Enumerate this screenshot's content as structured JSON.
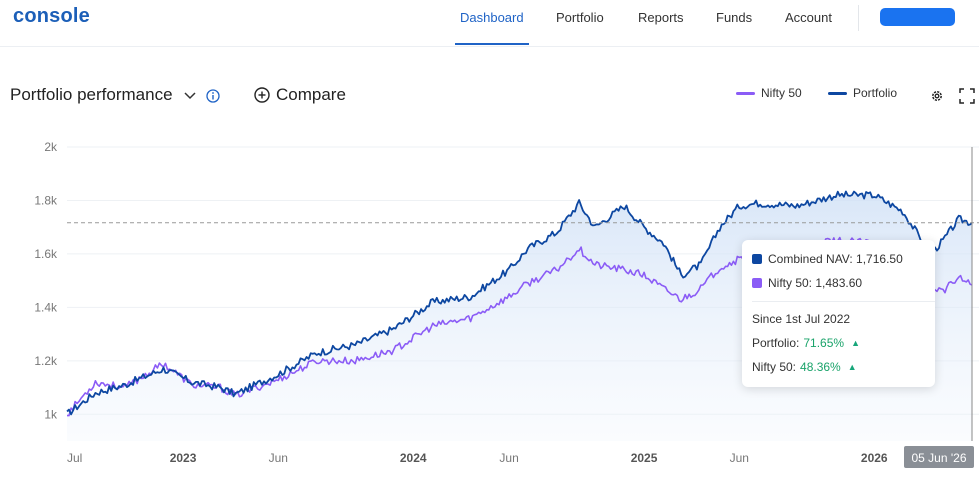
{
  "header": {
    "logo": "console",
    "nav": [
      {
        "label": "Dashboard",
        "active": true
      },
      {
        "label": "Portfolio",
        "active": false
      },
      {
        "label": "Reports",
        "active": false
      },
      {
        "label": "Funds",
        "active": false
      },
      {
        "label": "Account",
        "active": false
      }
    ]
  },
  "toolbar": {
    "title": "Portfolio performance",
    "compare_label": "Compare",
    "legend": [
      {
        "label": "Nifty 50",
        "color": "#8b5cf6"
      },
      {
        "label": "Portfolio",
        "color": "#0d47a1"
      }
    ]
  },
  "tooltip": {
    "combined_label": "Combined NAV: 1,716.50",
    "nifty_label": "Nifty 50: 1,483.60",
    "since": "Since 1st Jul 2022",
    "portfolio_key": "Portfolio:",
    "portfolio_val": "71.65%",
    "nifty_key": "Nifty 50:",
    "nifty_val": "48.36%"
  },
  "chart_data": {
    "type": "line",
    "title": "",
    "xlabel": "",
    "ylabel": "",
    "ylim": [
      900,
      2000
    ],
    "x_range": [
      "2022-07-01",
      "2026-06-05"
    ],
    "y_ticks": [
      {
        "value": 1000,
        "label": "1k"
      },
      {
        "value": 1200,
        "label": "1.2k"
      },
      {
        "value": 1400,
        "label": "1.4k"
      },
      {
        "value": 1600,
        "label": "1.6k"
      },
      {
        "value": 1800,
        "label": "1.8k"
      },
      {
        "value": 2000,
        "label": "2k"
      }
    ],
    "x_ticks": [
      {
        "date": "2022-07-01",
        "label": "Jul"
      },
      {
        "date": "2023-01-01",
        "label": "2023"
      },
      {
        "date": "2023-06-01",
        "label": "Jun"
      },
      {
        "date": "2024-01-01",
        "label": "2024"
      },
      {
        "date": "2024-06-01",
        "label": "Jun"
      },
      {
        "date": "2025-01-01",
        "label": "2025"
      },
      {
        "date": "2025-06-01",
        "label": "Jun"
      },
      {
        "date": "2026-01-01",
        "label": "2026"
      }
    ],
    "crosshair": {
      "date": "2026-06-05",
      "label": "05 Jun '26",
      "value": 1716.5
    },
    "grid": true,
    "legend_position": "top-right",
    "series": [
      {
        "name": "Portfolio",
        "color": "#0d47a1",
        "points": [
          [
            "2022-07-01",
            1000
          ],
          [
            "2022-08-15",
            1080
          ],
          [
            "2022-10-01",
            1110
          ],
          [
            "2022-12-01",
            1170
          ],
          [
            "2023-01-15",
            1120
          ],
          [
            "2023-03-01",
            1100
          ],
          [
            "2023-03-25",
            1075
          ],
          [
            "2023-06-01",
            1150
          ],
          [
            "2023-08-01",
            1230
          ],
          [
            "2023-10-01",
            1260
          ],
          [
            "2023-12-01",
            1320
          ],
          [
            "2024-02-01",
            1420
          ],
          [
            "2024-04-01",
            1440
          ],
          [
            "2024-06-01",
            1540
          ],
          [
            "2024-07-01",
            1620
          ],
          [
            "2024-08-15",
            1680
          ],
          [
            "2024-09-20",
            1790
          ],
          [
            "2024-10-15",
            1700
          ],
          [
            "2024-12-01",
            1780
          ],
          [
            "2025-01-01",
            1700
          ],
          [
            "2025-02-01",
            1640
          ],
          [
            "2025-03-01",
            1520
          ],
          [
            "2025-04-01",
            1560
          ],
          [
            "2025-05-01",
            1700
          ],
          [
            "2025-06-01",
            1780
          ],
          [
            "2025-07-01",
            1790
          ],
          [
            "2025-09-01",
            1780
          ],
          [
            "2025-11-01",
            1820
          ],
          [
            "2026-01-01",
            1820
          ],
          [
            "2026-02-15",
            1760
          ],
          [
            "2026-04-01",
            1600
          ],
          [
            "2026-04-20",
            1650
          ],
          [
            "2026-05-15",
            1730
          ],
          [
            "2026-06-05",
            1716.5
          ]
        ]
      },
      {
        "name": "Nifty 50",
        "color": "#8b5cf6",
        "points": [
          [
            "2022-07-01",
            1000
          ],
          [
            "2022-08-15",
            1120
          ],
          [
            "2022-10-01",
            1100
          ],
          [
            "2022-12-01",
            1190
          ],
          [
            "2023-01-15",
            1110
          ],
          [
            "2023-03-01",
            1100
          ],
          [
            "2023-03-25",
            1070
          ],
          [
            "2023-06-01",
            1130
          ],
          [
            "2023-08-01",
            1200
          ],
          [
            "2023-10-01",
            1200
          ],
          [
            "2023-12-01",
            1240
          ],
          [
            "2024-02-01",
            1330
          ],
          [
            "2024-04-01",
            1360
          ],
          [
            "2024-06-01",
            1440
          ],
          [
            "2024-07-01",
            1490
          ],
          [
            "2024-08-15",
            1540
          ],
          [
            "2024-09-20",
            1620
          ],
          [
            "2024-10-15",
            1560
          ],
          [
            "2024-12-01",
            1540
          ],
          [
            "2025-01-01",
            1520
          ],
          [
            "2025-02-01",
            1470
          ],
          [
            "2025-03-01",
            1430
          ],
          [
            "2025-04-01",
            1470
          ],
          [
            "2025-05-01",
            1550
          ],
          [
            "2025-06-01",
            1580
          ],
          [
            "2025-07-01",
            1600
          ],
          [
            "2025-09-01",
            1620
          ],
          [
            "2025-11-01",
            1650
          ],
          [
            "2026-01-01",
            1640
          ],
          [
            "2026-02-15",
            1600
          ],
          [
            "2026-04-01",
            1480
          ],
          [
            "2026-04-20",
            1460
          ],
          [
            "2026-05-15",
            1510
          ],
          [
            "2026-06-05",
            1483.6
          ]
        ]
      }
    ]
  }
}
